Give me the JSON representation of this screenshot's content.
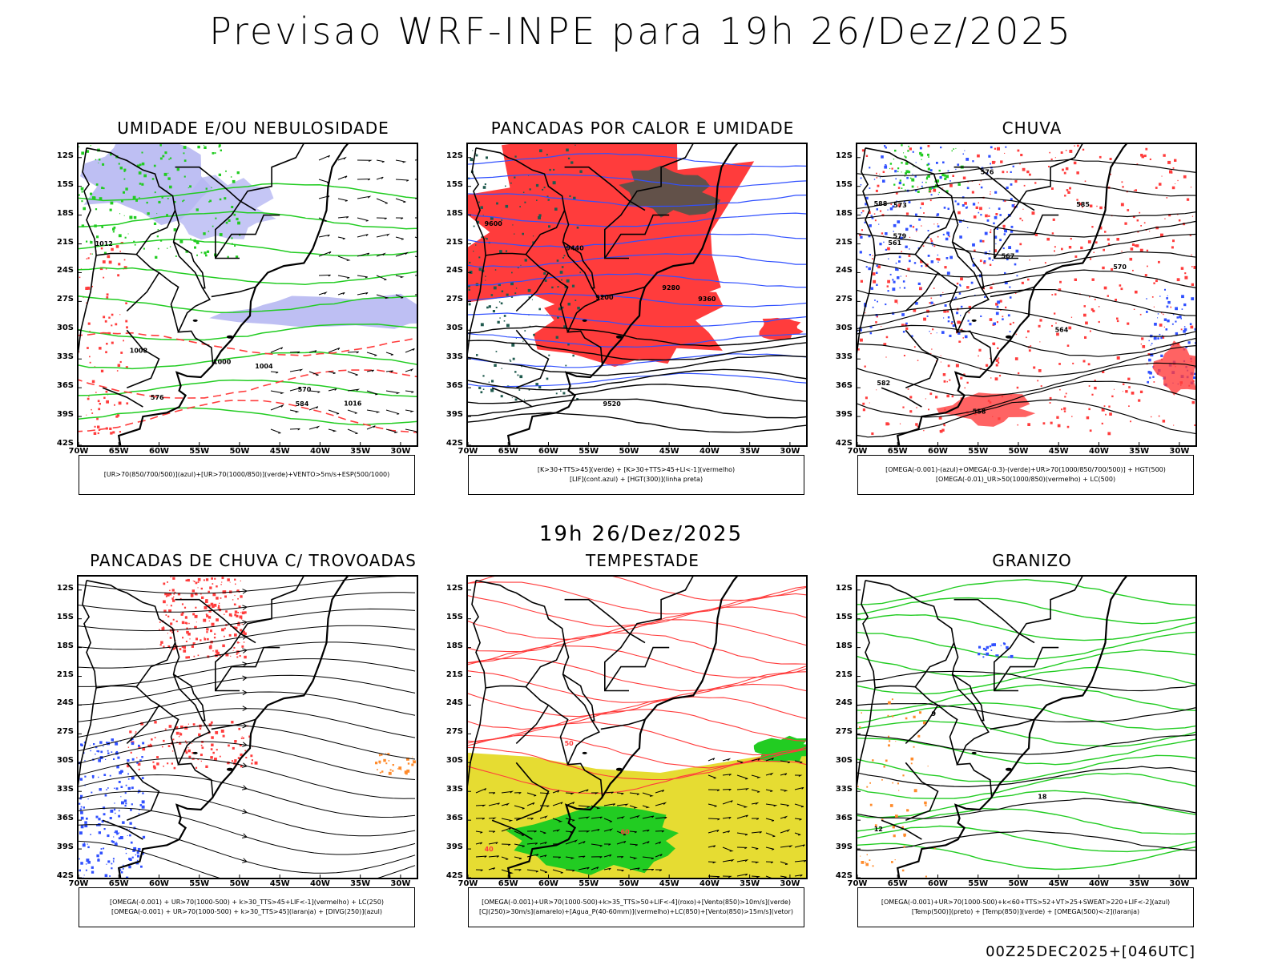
{
  "header": {
    "title": "Previsao WRF-INPE  para 19h 26/Dez/2025"
  },
  "subtitle": "19h 26/Dez/2025",
  "footer": "00Z25DEC2025+[046UTC]",
  "axes": {
    "lat_labels": [
      "12S",
      "15S",
      "18S",
      "21S",
      "24S",
      "27S",
      "30S",
      "33S",
      "36S",
      "39S",
      "42S"
    ],
    "lon_labels": [
      "70W",
      "65W",
      "60W",
      "55W",
      "50W",
      "45W",
      "40W",
      "35W",
      "30W"
    ]
  },
  "panels": [
    {
      "title": "UMIDADE E/OU NEBULOSIDADE",
      "legend": [
        "[UR>70(850/700/500)](azul)+[UR>70(1000/850)](verde)+VENTO>5m/s+ESP(500/1000)"
      ],
      "contour_labels": [
        "1012",
        "1008",
        "1004",
        "1000",
        "1016",
        "570",
        "576",
        "584"
      ]
    },
    {
      "title": "PANCADAS POR CALOR E UMIDADE",
      "legend": [
        "[K>30+TTS>45](verde) + [K>30+TTS>45+LI<-1](vermelho)",
        "[LIF](cont.azul) + [HGT(300)](linha preta)"
      ],
      "contour_labels": [
        "9600",
        "9520",
        "9440",
        "9360",
        "9280",
        "9200"
      ]
    },
    {
      "title": "CHUVA",
      "legend": [
        "[OMEGA(-0.001)-(azul)+OMEGA(-0.3)-(verde)+UR>70(1000/850/700/500)] + HGT(500)",
        "[OMEGA(-0.01)_UR>50(1000/850)(vermelho) + LC(500)"
      ],
      "contour_labels": [
        "588",
        "585",
        "582",
        "579",
        "576",
        "573",
        "570",
        "567",
        "564",
        "561",
        "558"
      ]
    },
    {
      "title": "PANCADAS DE CHUVA C/ TROVOADAS",
      "legend": [
        "[OMEGA(-0.001) + UR>70(1000-500) + k>30_TTS>45+LIF<-1](vermelho) + LC(250)",
        "[OMEGA(-0.001) + UR>70(1000-500) + k>30_TTS>45](laranja) + [DIVG(250)](azul)"
      ],
      "contour_labels": []
    },
    {
      "title": "TEMPESTADE",
      "legend": [
        "[OMEGA(-0.001)+UR>70(1000-500)+k>35_TTS>50+LIF<-4](roxo)+[Vento(850)>10m/s](verde)",
        "[CJ(250)>30m/s](amarelo)+[Agua_P(40-60mm)](vermelho)+LC(850)+[Vento(850)>15m/s](vetor)"
      ],
      "contour_labels": [
        "40",
        "50",
        "60"
      ]
    },
    {
      "title": "GRANIZO",
      "legend": [
        "[OMEGA(-0.001)+UR>70(1000-500)+k<60+TTS>52+VT>25+SWEAT>220+LIF<-2](azul)",
        "[Temp(500)](preto) + [Temp(850)](verde) + [OMEGA(500)<-2](laranja)"
      ],
      "contour_labels": [
        "12",
        "18",
        "9"
      ]
    }
  ],
  "colors": {
    "humid_blue": "#b7b8f2",
    "green": "#22cc22",
    "red": "#ff3c3c",
    "yellow": "#e6dc32",
    "dark_teal": "#1f5a4e",
    "blue": "#3050ff",
    "orange": "#ff8a2a",
    "purple": "#a020f0"
  }
}
